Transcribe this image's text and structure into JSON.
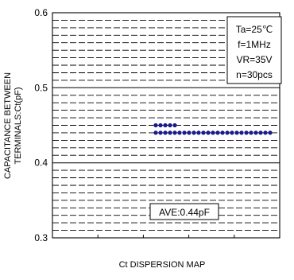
{
  "chart_data": {
    "type": "scatter",
    "title": "",
    "xlabel": "Ct DISPERSION MAP",
    "ylabel_line1": "CAPACITANCE BETWEEN",
    "ylabel_line2": "TERMINALS:Ct(pF)",
    "ylim": [
      0.3,
      0.6
    ],
    "y_ticks": [
      "0.6",
      "0.5",
      "0.4",
      "0.3"
    ],
    "y_tick_values": [
      0.6,
      0.5,
      0.4,
      0.3
    ],
    "x_ticks_count": 4,
    "grid": true,
    "conditions": [
      "Ta=25℃",
      "f=1MHz",
      "VR=35V",
      "n=30pcs"
    ],
    "average_label": "AVE:0.44pF",
    "marker_color": "#1a1a8c",
    "series": [
      {
        "y": 0.45,
        "count": 5
      },
      {
        "y": 0.44,
        "count": 25
      }
    ]
  }
}
